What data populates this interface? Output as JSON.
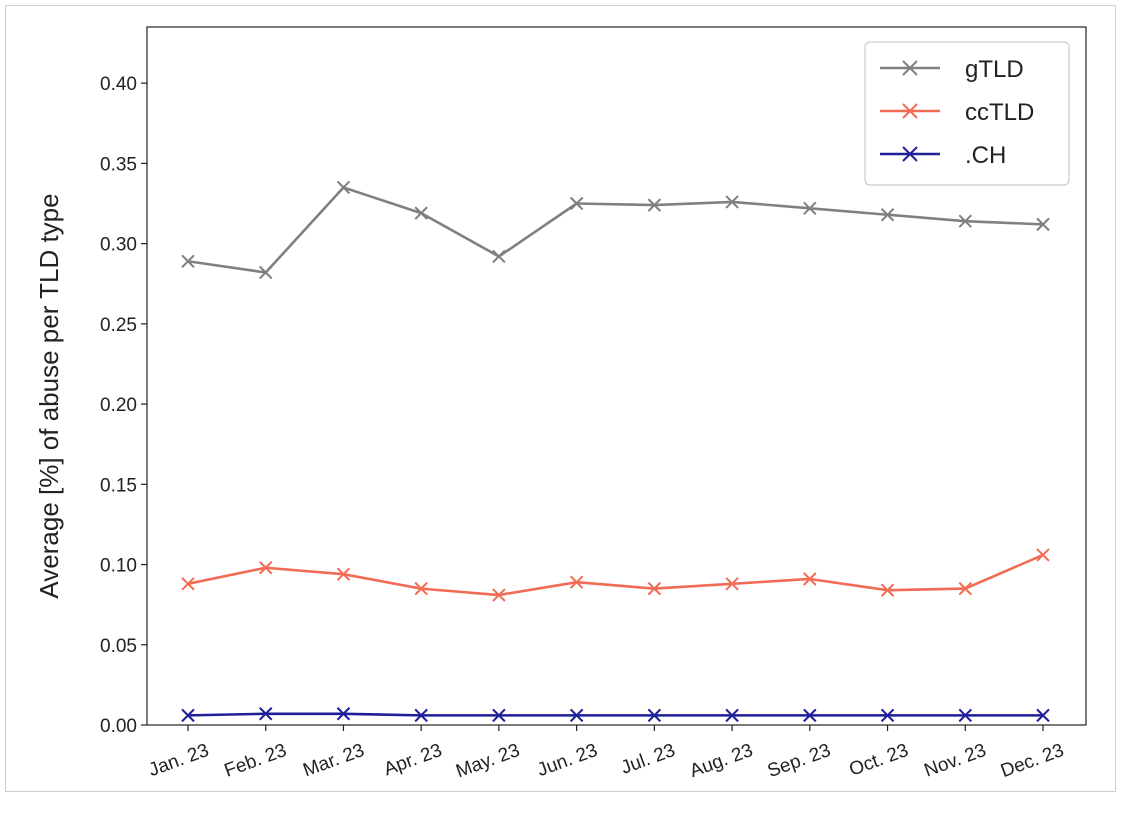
{
  "chart_data": {
    "type": "line",
    "ylabel": "Average [%] of abuse per TLD type",
    "ylim": [
      0,
      0.435
    ],
    "yticks": [
      "0.00",
      "0.05",
      "0.10",
      "0.15",
      "0.20",
      "0.25",
      "0.30",
      "0.35",
      "0.40"
    ],
    "categories": [
      "Jan. 23",
      "Feb. 23",
      "Mar. 23",
      "Apr. 23",
      "May. 23",
      "Jun. 23",
      "Jul. 23",
      "Aug. 23",
      "Sep. 23",
      "Oct. 23",
      "Nov. 23",
      "Dec. 23"
    ],
    "grid": false,
    "legend_position": "top-right",
    "series": [
      {
        "name": "gTLD",
        "color": "#808080",
        "marker": "x",
        "values": [
          0.289,
          0.282,
          0.335,
          0.319,
          0.292,
          0.325,
          0.324,
          0.326,
          0.322,
          0.318,
          0.314,
          0.312
        ]
      },
      {
        "name": "ccTLD",
        "color": "#f26b55",
        "marker": "x",
        "values": [
          0.088,
          0.098,
          0.094,
          0.085,
          0.081,
          0.089,
          0.085,
          0.088,
          0.091,
          0.084,
          0.085,
          0.106
        ]
      },
      {
        "name": ".CH",
        "color": "#1f1f99",
        "marker": "x",
        "values": [
          0.006,
          0.007,
          0.007,
          0.006,
          0.006,
          0.006,
          0.006,
          0.006,
          0.006,
          0.006,
          0.006,
          0.006
        ]
      }
    ]
  }
}
